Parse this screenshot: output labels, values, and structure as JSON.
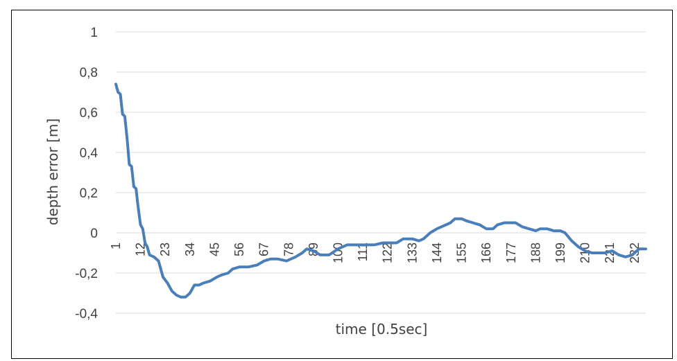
{
  "chart_data": {
    "type": "line",
    "title": "",
    "xlabel": "time [0.5sec]",
    "ylabel": "depth error [m]",
    "ylim": [
      -0.4,
      1
    ],
    "yticks": [
      1,
      0.8,
      0.6,
      0.4,
      0.2,
      0,
      -0.2,
      -0.4
    ],
    "ytick_labels": [
      "1",
      "0,8",
      "0,6",
      "0,4",
      "0,2",
      "0",
      "-0,2",
      "-0,4"
    ],
    "xlim": [
      1,
      237
    ],
    "xticks": [
      1,
      12,
      23,
      34,
      45,
      56,
      67,
      78,
      89,
      100,
      111,
      122,
      133,
      144,
      155,
      166,
      177,
      188,
      199,
      210,
      221,
      232
    ],
    "grid": "horizontal",
    "legend": "none",
    "line_color": "#4a7ebb",
    "series": [
      {
        "x": [
          1,
          2,
          3,
          4,
          5,
          6,
          7,
          8,
          9,
          10,
          11,
          12,
          13,
          14,
          15,
          16,
          18,
          20,
          22,
          24,
          26,
          28,
          30,
          32,
          34,
          36,
          38,
          40,
          43,
          46,
          48,
          51,
          53,
          56,
          60,
          64,
          67,
          70,
          73,
          77,
          81,
          84,
          86,
          89,
          92,
          96,
          100,
          104,
          108,
          112,
          116,
          120,
          122,
          126,
          129,
          133,
          136,
          138,
          141,
          144,
          148,
          150,
          152,
          155,
          157,
          160,
          163,
          166,
          169,
          171,
          174,
          177,
          179,
          182,
          185,
          188,
          190,
          193,
          196,
          199,
          201,
          204,
          207,
          210,
          213,
          216,
          219,
          222,
          225,
          228,
          231,
          234,
          237
        ],
        "y": [
          0.74,
          0.7,
          0.69,
          0.59,
          0.58,
          0.47,
          0.34,
          0.33,
          0.23,
          0.22,
          0.12,
          0.04,
          0.02,
          -0.05,
          -0.07,
          -0.11,
          -0.12,
          -0.14,
          -0.22,
          -0.25,
          -0.29,
          -0.31,
          -0.32,
          -0.32,
          -0.3,
          -0.26,
          -0.26,
          -0.25,
          -0.24,
          -0.22,
          -0.21,
          -0.2,
          -0.18,
          -0.17,
          -0.17,
          -0.16,
          -0.14,
          -0.13,
          -0.13,
          -0.14,
          -0.12,
          -0.1,
          -0.08,
          -0.09,
          -0.11,
          -0.11,
          -0.08,
          -0.06,
          -0.06,
          -0.06,
          -0.06,
          -0.05,
          -0.05,
          -0.05,
          -0.03,
          -0.03,
          -0.04,
          -0.03,
          0.0,
          0.02,
          0.04,
          0.05,
          0.07,
          0.07,
          0.06,
          0.05,
          0.04,
          0.02,
          0.02,
          0.04,
          0.05,
          0.05,
          0.05,
          0.03,
          0.02,
          0.01,
          0.02,
          0.02,
          0.01,
          0.01,
          0.0,
          -0.04,
          -0.07,
          -0.09,
          -0.1,
          -0.1,
          -0.1,
          -0.09,
          -0.11,
          -0.12,
          -0.11,
          -0.08,
          -0.08
        ]
      }
    ]
  }
}
